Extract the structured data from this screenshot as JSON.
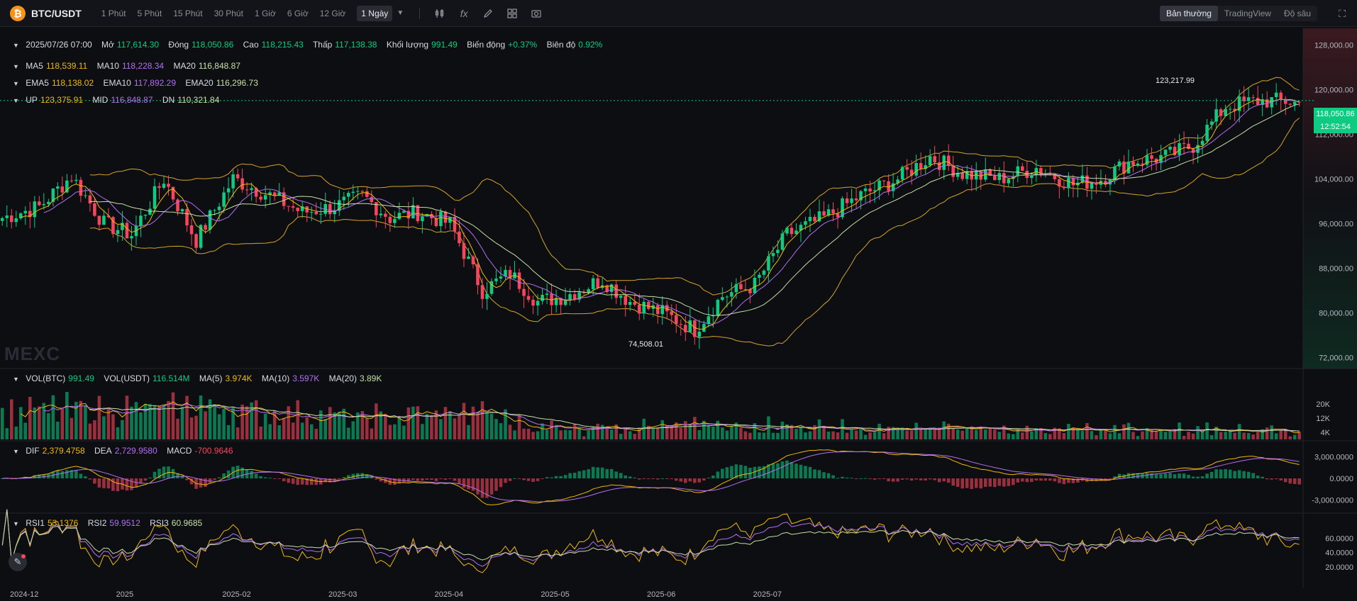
{
  "header": {
    "logo_glyph": "₿",
    "pair": "BTC/USDT",
    "timeframes": [
      "1 Phút",
      "5 Phút",
      "15 Phút",
      "30 Phút",
      "1 Giờ",
      "6 Giờ",
      "12 Giờ",
      "1 Ngày"
    ],
    "active_timeframe": "1 Ngày",
    "tools": [
      "indicator-icon",
      "formula-icon",
      "draw-pen-icon",
      "layout-grid-icon",
      "camera-icon"
    ],
    "views": [
      "Bản thường",
      "TradingView",
      "Độ sâu"
    ],
    "active_view": "Bản thường"
  },
  "ohlc_legend": {
    "date": "2025/07/26 07:00",
    "open_label": "Mở",
    "open": "117,614.30",
    "close_label": "Đóng",
    "close": "118,050.86",
    "high_label": "Cao",
    "high": "118,215.43",
    "low_label": "Thấp",
    "low": "117,138.38",
    "vol_label": "Khối lượng",
    "vol": "991.49",
    "change_label": "Biến động",
    "change": "+0.37%",
    "amp_label": "Biên độ",
    "amp": "0.92%"
  },
  "ma_legend": {
    "ma5_label": "MA5",
    "ma5": "118,539.11",
    "ma10_label": "MA10",
    "ma10": "118,228.34",
    "ma20_label": "MA20",
    "ma20": "116,848.87"
  },
  "ema_legend": {
    "ema5_label": "EMA5",
    "ema5": "118,138.02",
    "ema10_label": "EMA10",
    "ema10": "117,892.29",
    "ema20_label": "EMA20",
    "ema20": "116,296.73"
  },
  "boll_legend": {
    "up_label": "UP",
    "up": "123,375.91",
    "mid_label": "MID",
    "mid": "116,848.87",
    "dn_label": "DN",
    "dn": "110,321.84"
  },
  "vol_legend": {
    "vbtc_label": "VOL(BTC)",
    "vbtc": "991.49",
    "vusdt_label": "VOL(USDT)",
    "vusdt": "116.514M",
    "ma5_label": "MA(5)",
    "ma5": "3.974K",
    "ma10_label": "MA(10)",
    "ma10": "3.597K",
    "ma20_label": "MA(20)",
    "ma20": "3.89K"
  },
  "macd_legend": {
    "dif_label": "DIF",
    "dif": "2,379.4758",
    "dea_label": "DEA",
    "dea": "2,729.9580",
    "macd_label": "MACD",
    "macd": "-700.9646"
  },
  "rsi_legend": {
    "rsi1_label": "RSI1",
    "rsi1": "53.1376",
    "rsi2_label": "RSI2",
    "rsi2": "59.9512",
    "rsi3_label": "RSI3",
    "rsi3": "60.9685"
  },
  "last_price": {
    "price": "118,050.86",
    "countdown": "12:52:54"
  },
  "extremes": {
    "high": "123,217.99",
    "low": "74,508.01"
  },
  "watermark": "MEXC",
  "colors": {
    "up": "#0ecb81",
    "down": "#f6465d",
    "ma5": "#f0b90b",
    "ma10": "#b36ff2",
    "ma20": "#c5e0a5",
    "bg": "#0d0e12"
  },
  "chart_data": {
    "type": "candlestick",
    "x_labels": [
      "2024-12",
      "2025",
      "2025-02",
      "2025-03",
      "2025-04",
      "2025-05",
      "2025-06",
      "2025-07"
    ],
    "price_ticks": [
      "128,000.00",
      "120,000.00",
      "112,000.00",
      "104,000.00",
      "96,000.00",
      "88,000.00",
      "80,000.00",
      "72,000.00"
    ],
    "price_range": [
      70000,
      131000
    ],
    "vol_ticks": [
      "20K",
      "12K",
      "4K"
    ],
    "vol_max": 32000,
    "macd_ticks": [
      "3,000.0000",
      "0.0000",
      "-3,000.0000"
    ],
    "macd_range": [
      -4200,
      4200
    ],
    "rsi_ticks": [
      "60.0000",
      "40.0000",
      "20.0000"
    ],
    "rsi_range": [
      0,
      85
    ],
    "anchors": [
      [
        0,
        97000
      ],
      [
        8,
        99000
      ],
      [
        15,
        104500
      ],
      [
        22,
        96000
      ],
      [
        28,
        94000
      ],
      [
        35,
        104000
      ],
      [
        42,
        93000
      ],
      [
        50,
        104000
      ],
      [
        58,
        101000
      ],
      [
        65,
        98000
      ],
      [
        72,
        99000
      ],
      [
        78,
        101000
      ],
      [
        84,
        97000
      ],
      [
        90,
        98000
      ],
      [
        97,
        96000
      ],
      [
        104,
        84000
      ],
      [
        110,
        87000
      ],
      [
        116,
        82000
      ],
      [
        122,
        83000
      ],
      [
        130,
        86000
      ],
      [
        136,
        82000
      ],
      [
        143,
        80000
      ],
      [
        150,
        77000
      ],
      [
        156,
        83000
      ],
      [
        163,
        85000
      ],
      [
        170,
        94000
      ],
      [
        178,
        97000
      ],
      [
        186,
        101000
      ],
      [
        194,
        104000
      ],
      [
        201,
        108000
      ],
      [
        208,
        105000
      ],
      [
        216,
        104000
      ],
      [
        224,
        106000
      ],
      [
        232,
        103000
      ],
      [
        238,
        104000
      ],
      [
        244,
        107000
      ],
      [
        252,
        108000
      ],
      [
        258,
        110000
      ],
      [
        265,
        117000
      ],
      [
        272,
        118000
      ],
      [
        278,
        118000
      ],
      [
        281,
        117500
      ]
    ]
  }
}
